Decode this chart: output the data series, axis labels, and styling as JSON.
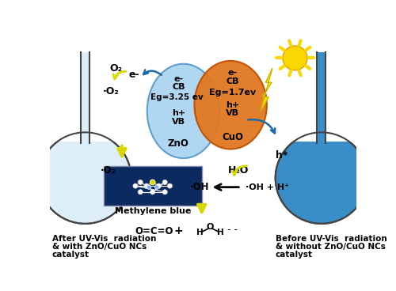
{
  "bg_color": "#ffffff",
  "flask_left_fill": "#ddeef8",
  "flask_right_fill": "#3a8ec8",
  "flask_outline": "#444444",
  "zno_color": "#a8d4f0",
  "zno_edge": "#5599cc",
  "cuo_color": "#e07820",
  "cuo_edge": "#c05000",
  "sun_color": "#f8d800",
  "sun_edge": "#e0a000",
  "bolt_color": "#f0e000",
  "yellow_arrow": "#d8d800",
  "blue_arrow": "#1a6aaa",
  "mb_box": "#0a2a60",
  "text_labels": {
    "zno_lines": [
      "e-",
      "CB",
      "Eg=3.25 ev",
      "h+",
      "VB",
      "ZnO"
    ],
    "cuo_lines": [
      "e-",
      "CB",
      "Eg=1.7ev",
      "h+",
      "VB",
      "CuO"
    ],
    "left_caption": [
      "After UV-Vis  radiation",
      "& with ZnO/CuO NCs",
      "catalyst"
    ],
    "right_caption": [
      "Before UV-Vis  radiation",
      "& without ZnO/CuO NCs",
      "catalyst"
    ],
    "o2": "O₂",
    "eminus": "e-",
    "dot_o2": "·O₂",
    "h_star": "h*",
    "h2o": "H₂O",
    "dot_oh": "·OH",
    "dot_oh_rhs": "·OH + H⁺",
    "methylene_blue": "Methylene blue",
    "co2": "O=C=O",
    "plus_sign": "+",
    "dashes": "- -"
  }
}
